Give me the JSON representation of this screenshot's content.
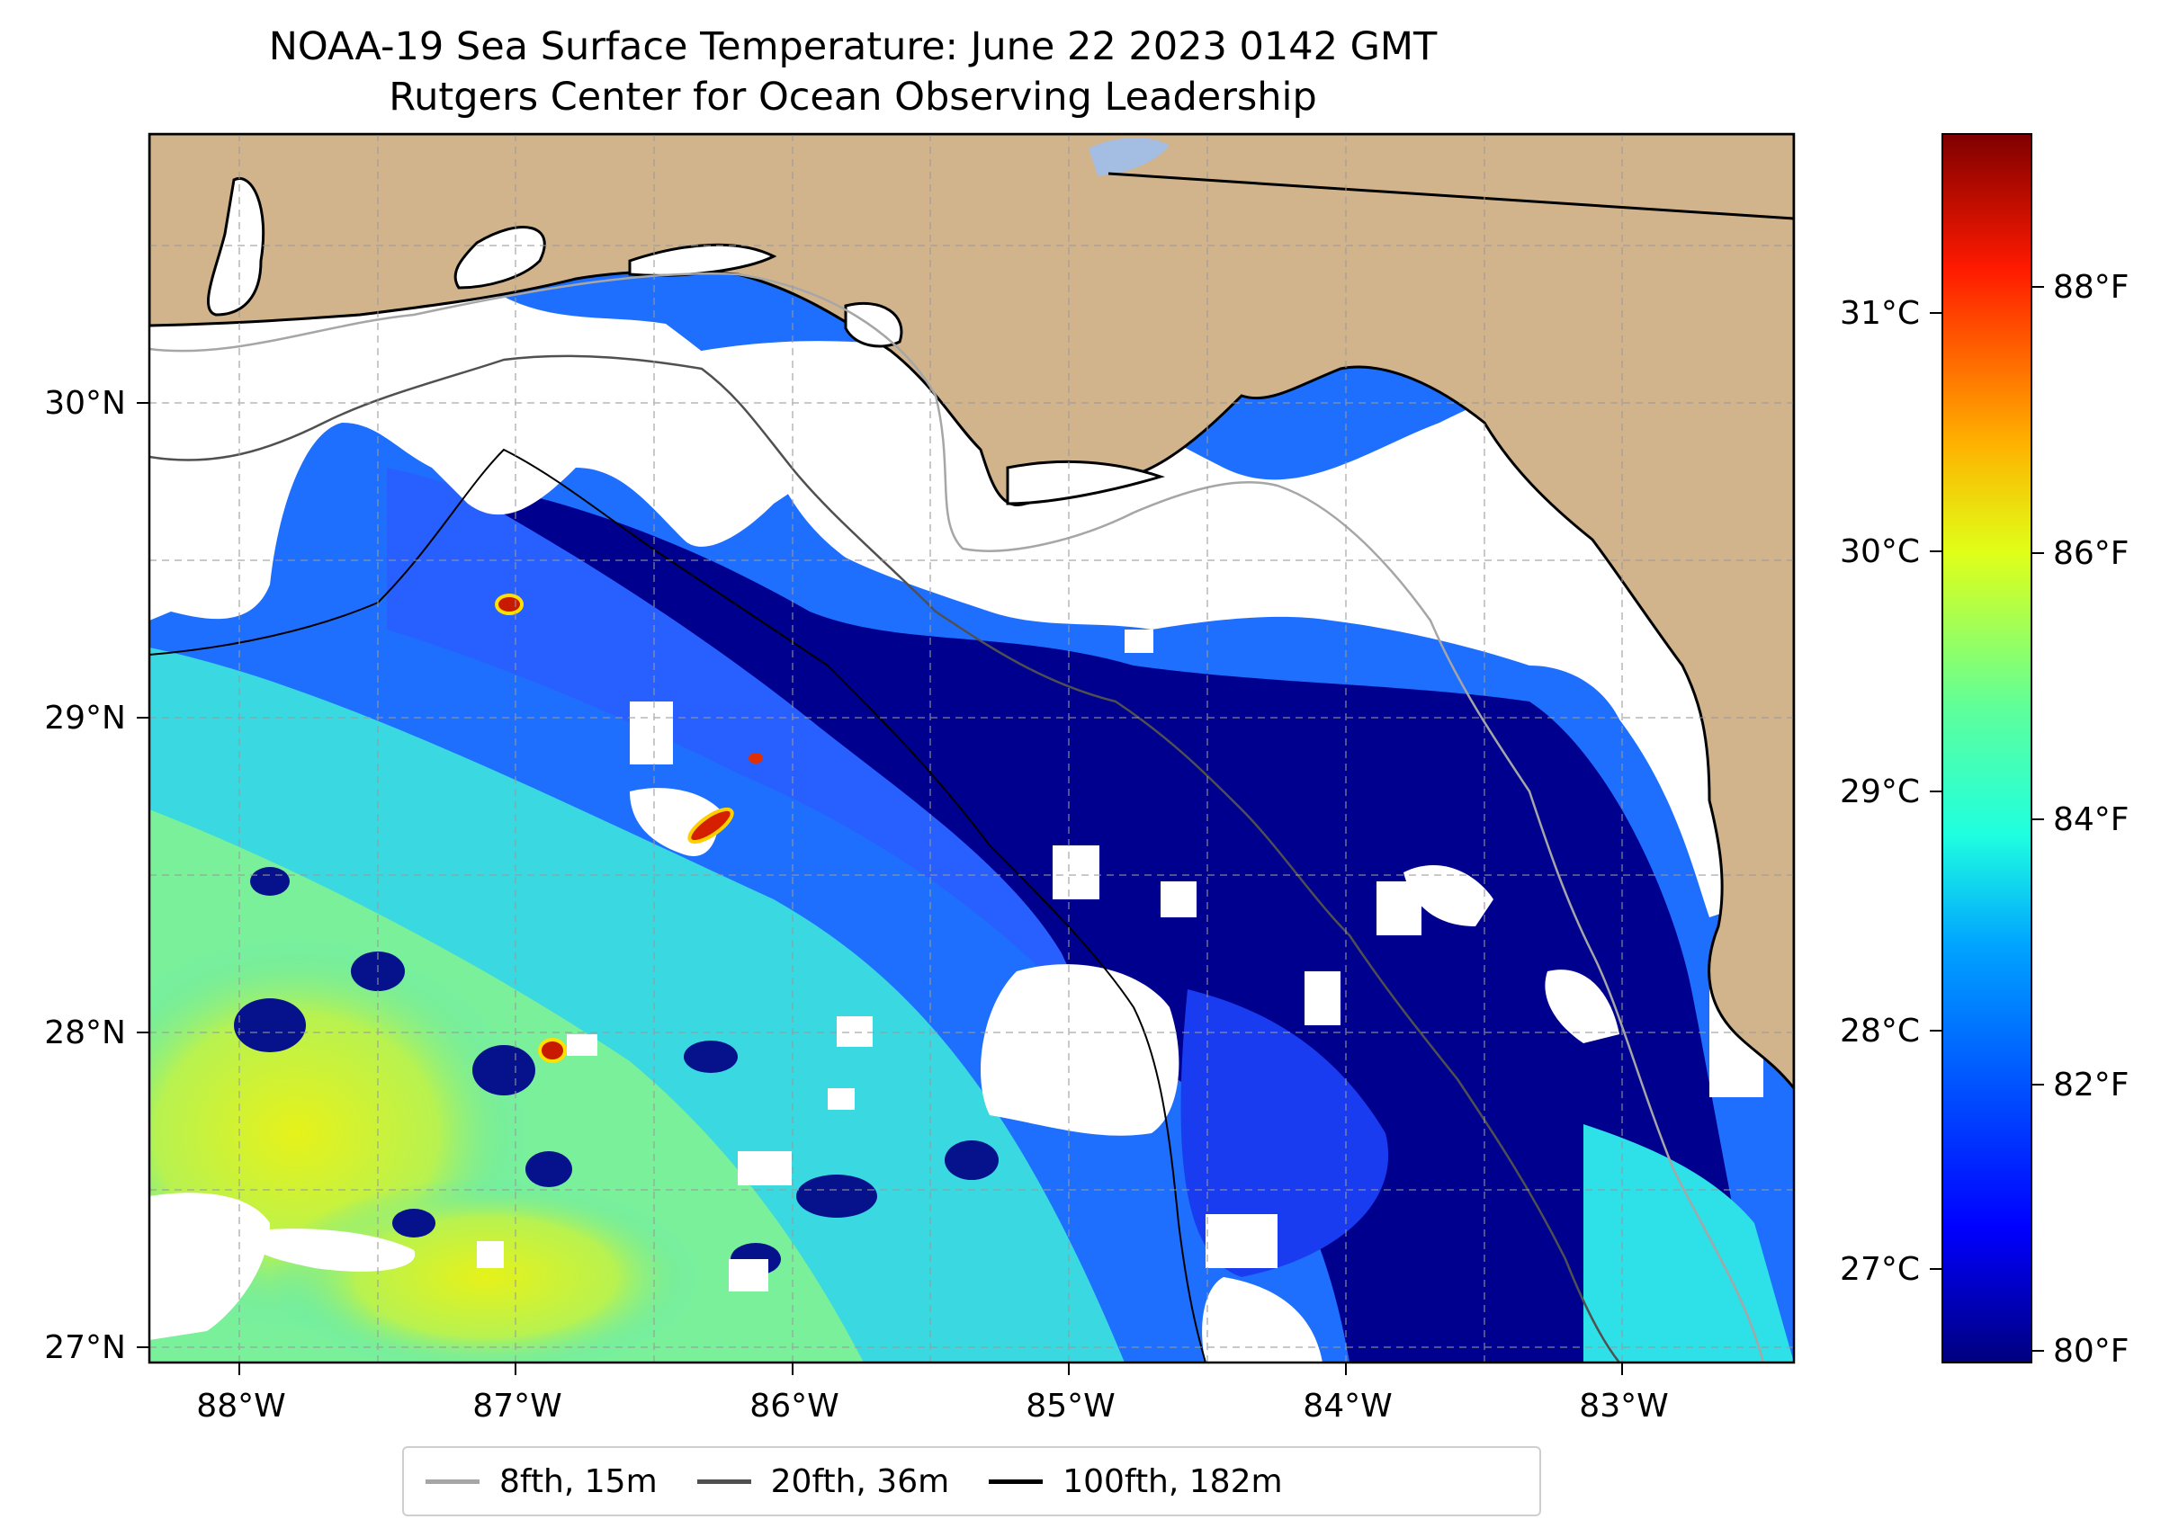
{
  "title": {
    "line1": "NOAA-19 Sea Surface Temperature: June 22 2023 0142 GMT",
    "line2": "Rutgers Center for Ocean Observing Leadership"
  },
  "map": {
    "lon_ticks": [
      "88°W",
      "87°W",
      "86°W",
      "85°W",
      "84°W",
      "83°W"
    ],
    "lat_ticks": [
      "30°N",
      "29°N",
      "28°N",
      "27°N"
    ]
  },
  "colorbar": {
    "celsius_ticks": [
      "31°C",
      "30°C",
      "29°C",
      "28°C",
      "27°C"
    ],
    "fahrenheit_ticks": [
      "88°F",
      "86°F",
      "84°F",
      "82°F",
      "80°F"
    ],
    "colormap": "jet",
    "range_f": [
      79.8,
      89.6
    ]
  },
  "legend": {
    "items": [
      {
        "label": "8fth, 15m",
        "color": "#a6a6a6"
      },
      {
        "label": "20fth, 36m",
        "color": "#505050"
      },
      {
        "label": "100fth, 182m",
        "color": "#000000"
      }
    ]
  },
  "colors": {
    "land": "#d2b48c",
    "cloud_no_data": "#ffffff",
    "lake": "#a3bde3"
  }
}
